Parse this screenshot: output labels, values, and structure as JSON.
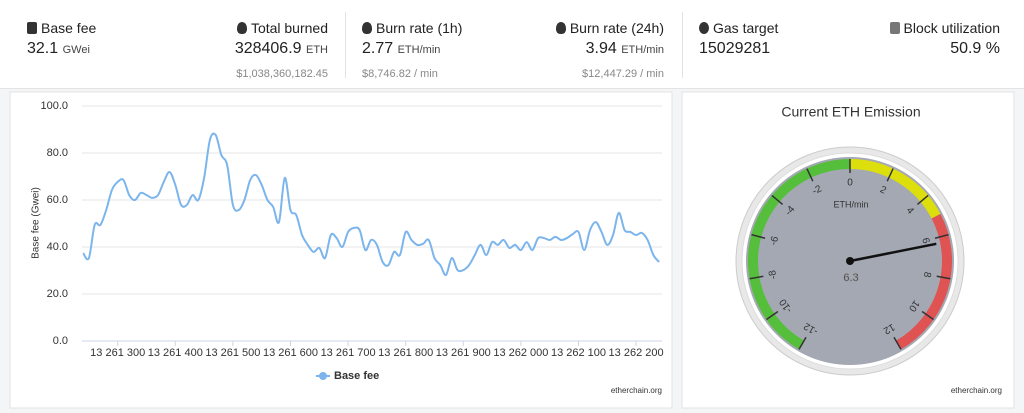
{
  "stats": [
    {
      "label": "Base fee",
      "value": "32.1",
      "unit": "GWei"
    },
    {
      "label": "Total burned",
      "value": "328406.9",
      "unit": "ETH",
      "usd": "$1,038,360,182.45"
    },
    {
      "label": "Burn rate (1h)",
      "value": "2.77",
      "unit": "ETH/min",
      "usd": "$8,746.82 / min"
    },
    {
      "label": "Burn rate (24h)",
      "value": "3.94",
      "unit": "ETH/min",
      "usd": "$12,447.29 / min"
    },
    {
      "label": "Gas target",
      "value": "15029281"
    },
    {
      "label": "Block utilization",
      "value": "50.9 %"
    }
  ],
  "chart_data": [
    {
      "type": "line",
      "y_label": "Base fee (Gwei)",
      "legend": "Base fee",
      "color": "#7cb5ec",
      "credit": "etherchain.org",
      "grid": true,
      "x": [
        13261240,
        13261250,
        13261260,
        13261270,
        13261280,
        13261290,
        13261300,
        13261310,
        13261320,
        13261330,
        13261340,
        13261350,
        13261360,
        13261370,
        13261380,
        13261390,
        13261400,
        13261410,
        13261420,
        13261430,
        13261440,
        13261450,
        13261460,
        13261470,
        13261480,
        13261490,
        13261500,
        13261510,
        13261520,
        13261530,
        13261540,
        13261550,
        13261560,
        13261570,
        13261580,
        13261590,
        13261600,
        13261610,
        13261620,
        13261630,
        13261640,
        13261650,
        13261660,
        13261670,
        13261680,
        13261690,
        13261700,
        13261710,
        13261720,
        13261730,
        13261740,
        13261750,
        13261760,
        13261770,
        13261780,
        13261790,
        13261800,
        13261810,
        13261820,
        13261830,
        13261840,
        13261850,
        13261860,
        13261870,
        13261880,
        13261890,
        13261900,
        13261910,
        13261920,
        13261930,
        13261940,
        13261950,
        13261960,
        13261970,
        13261980,
        13261990,
        13262000,
        13262010,
        13262020,
        13262030,
        13262040,
        13262050,
        13262060,
        13262070,
        13262080,
        13262090,
        13262100,
        13262110,
        13262120,
        13262130,
        13262140,
        13262150,
        13262160,
        13262170,
        13262180,
        13262190,
        13262200,
        13262210,
        13262220,
        13262230,
        13262240
      ],
      "values": [
        37.4,
        35.3,
        49.4,
        49.4,
        55.7,
        64.3,
        67.7,
        68.5,
        62.1,
        60,
        63,
        62.1,
        60.9,
        62.1,
        67.7,
        71.9,
        66.4,
        57.9,
        57.9,
        62.1,
        60,
        69.4,
        85.5,
        87.7,
        79.1,
        74.9,
        57.9,
        55.7,
        60,
        68.5,
        70.6,
        66.4,
        60,
        57,
        50.6,
        69.4,
        55.7,
        53.6,
        45.1,
        40.9,
        37.9,
        39.6,
        35.3,
        45.1,
        43.8,
        40,
        46.4,
        48.1,
        47.2,
        38.7,
        43,
        40.9,
        33.6,
        32.3,
        37.9,
        36.6,
        46.4,
        43,
        40.9,
        41.3,
        43,
        35.3,
        32.3,
        28.1,
        35.3,
        30.2,
        30.2,
        32.3,
        36.6,
        40.9,
        36.6,
        42.1,
        40.9,
        43,
        39.6,
        40.9,
        38.7,
        42.1,
        38.7,
        43.8,
        43.8,
        43,
        44.3,
        43,
        43.8,
        45.5,
        46.4,
        38.7,
        47.2,
        50.6,
        46.4,
        40.9,
        45.1,
        54.5,
        47.2,
        46.4,
        45.1,
        46,
        43,
        36.6,
        33.6
      ],
      "xlim": [
        13261238,
        13262245
      ],
      "xticks": [
        {
          "value": 13261300,
          "label": "13 261 300"
        },
        {
          "value": 13261400,
          "label": "13 261 400"
        },
        {
          "value": 13261500,
          "label": "13 261 500"
        },
        {
          "value": 13261600,
          "label": "13 261 600"
        },
        {
          "value": 13261700,
          "label": "13 261 700"
        },
        {
          "value": 13261800,
          "label": "13 261 800"
        },
        {
          "value": 13261900,
          "label": "13 261 900"
        },
        {
          "value": 13262000,
          "label": "13 262 000"
        },
        {
          "value": 13262100,
          "label": "13 262 100"
        },
        {
          "value": 13262200,
          "label": "13 262 200"
        }
      ],
      "ylim": [
        0,
        100
      ],
      "yticks": [
        {
          "value": 0,
          "label": "0.0"
        },
        {
          "value": 20,
          "label": "20.0"
        },
        {
          "value": 40,
          "label": "40.0"
        },
        {
          "value": 60,
          "label": "60.0"
        },
        {
          "value": 80,
          "label": "80.0"
        },
        {
          "value": 100,
          "label": "100.0"
        }
      ]
    },
    {
      "type": "gauge",
      "title": "Current ETH Emission",
      "unit": "ETH/min",
      "value": 6.3,
      "credit": "etherchain.org",
      "range": [
        -12,
        12
      ],
      "ticks": [
        -12,
        -10,
        -8,
        -6,
        -4,
        -2,
        0,
        2,
        4,
        6,
        8,
        10,
        12
      ],
      "bands": [
        {
          "from": -12,
          "to": 0,
          "color": "#55bf3b"
        },
        {
          "from": 0,
          "to": 5,
          "color": "#dddf0d"
        },
        {
          "from": 5,
          "to": 12,
          "color": "#df5353"
        }
      ]
    }
  ]
}
